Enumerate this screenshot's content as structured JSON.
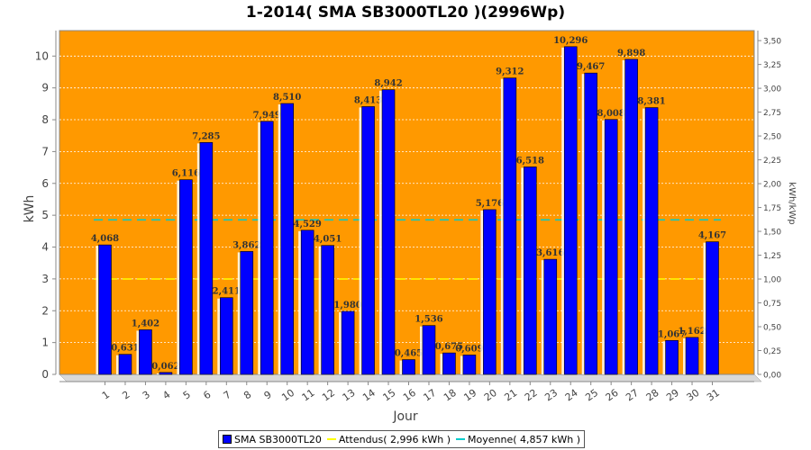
{
  "chart_data": {
    "type": "bar",
    "title": "1-2014( SMA SB3000TL20 )(2996Wp)",
    "xlabel": "Jour",
    "ylabel": "kWh",
    "y2label": "kWh/kWp",
    "categories": [
      "1",
      "2",
      "3",
      "4",
      "5",
      "6",
      "7",
      "8",
      "9",
      "10",
      "11",
      "12",
      "13",
      "14",
      "15",
      "16",
      "17",
      "18",
      "19",
      "20",
      "21",
      "22",
      "23",
      "24",
      "25",
      "26",
      "27",
      "28",
      "29",
      "30",
      "31"
    ],
    "series": [
      {
        "name": "SMA SB3000TL20",
        "values": [
          4.068,
          0.631,
          1.402,
          0.062,
          6.116,
          7.285,
          2.411,
          3.862,
          7.949,
          8.51,
          4.529,
          4.051,
          1.98,
          8.413,
          8.942,
          0.465,
          1.536,
          0.675,
          0.609,
          5.176,
          9.312,
          6.518,
          3.616,
          10.296,
          9.467,
          8.008,
          9.898,
          8.381,
          1.067,
          1.162,
          4.167
        ],
        "color": "#0000ff"
      }
    ],
    "data_labels": [
      "4,068",
      "0,631",
      "1,402",
      "0,062",
      "6,116",
      "7,285",
      "2,411",
      "3,862",
      "7,949",
      "8,510",
      "4,529",
      "4,051",
      "1,980",
      "8,413",
      "8,942",
      "0,465",
      "1,536",
      "0,675",
      "0,609",
      "5,176",
      "9,312",
      "6,518",
      "3,616",
      "10,296",
      "9,467",
      "8,008",
      "9,898",
      "8,381",
      "1,067",
      "1,162",
      "4,167"
    ],
    "reference_lines": [
      {
        "name": "Attendus( 2,996 kWh )",
        "value": 2.996,
        "color": "#ffff00",
        "style": "dashed"
      },
      {
        "name": "Moyenne( 4,857 kWh )",
        "value": 4.857,
        "color": "#00cccc",
        "style": "dashed"
      }
    ],
    "ylim": [
      0,
      10.8
    ],
    "y_ticks": [
      0,
      1,
      2,
      3,
      4,
      5,
      6,
      7,
      8,
      9,
      10
    ],
    "y2lim": [
      0,
      3.605
    ],
    "y2_ticks": [
      "0,00",
      "0,25",
      "0,50",
      "0,75",
      "1,00",
      "1,25",
      "1,50",
      "1,75",
      "2,00",
      "2,25",
      "2,50",
      "2,75",
      "3,00",
      "3,25",
      "3,50"
    ],
    "grid": true,
    "legend_position": "bottom",
    "plot_background": "#ff9900"
  }
}
